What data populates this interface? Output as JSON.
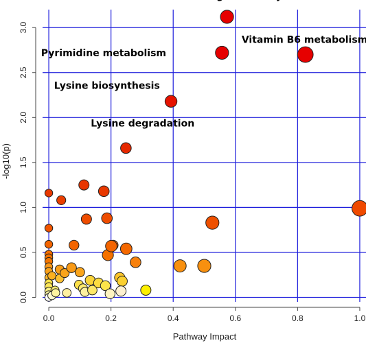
{
  "chart_data": {
    "type": "scatter",
    "title": "",
    "xlabel": "Pathway Impact",
    "ylabel": "-log10(p)",
    "xlim": [
      -0.02,
      1.02
    ],
    "ylim": [
      -0.05,
      3.2
    ],
    "xticks": [
      0.0,
      0.2,
      0.4,
      0.6,
      0.8,
      1.0
    ],
    "xtick_labels": [
      "0.0",
      "0.2",
      "0.4",
      "0.6",
      "0.8",
      "1.0"
    ],
    "yticks": [
      0.0,
      0.5,
      1.0,
      1.5,
      2.0,
      2.5,
      3.0
    ],
    "ytick_labels": [
      "0.0",
      "0.5",
      "1.0",
      "1.5",
      "2.0",
      "2.5",
      "3.0"
    ],
    "grid": true,
    "grid_color": "#1f1fdc",
    "color_scale": "low p → yellow/white, high -log10(p) → red",
    "points": [
      {
        "x": 0.573,
        "y": 3.12,
        "size": 1.1,
        "color": "#e60000"
      },
      {
        "x": 0.557,
        "y": 2.72,
        "size": 1.1,
        "color": "#e60000"
      },
      {
        "x": 0.825,
        "y": 2.7,
        "size": 1.4,
        "color": "#e60000"
      },
      {
        "x": 0.393,
        "y": 2.18,
        "size": 0.95,
        "color": "#e61200"
      },
      {
        "x": 0.248,
        "y": 1.66,
        "size": 0.8,
        "color": "#e62800"
      },
      {
        "x": 1.0,
        "y": 0.99,
        "size": 1.4,
        "color": "#ef4a00"
      },
      {
        "x": 0.113,
        "y": 1.25,
        "size": 0.75,
        "color": "#e83500"
      },
      {
        "x": 0.177,
        "y": 1.18,
        "size": 0.8,
        "color": "#e83800"
      },
      {
        "x": 0.0,
        "y": 1.16,
        "size": 0.45,
        "color": "#e83800"
      },
      {
        "x": 0.04,
        "y": 1.08,
        "size": 0.6,
        "color": "#ea3e00"
      },
      {
        "x": 0.121,
        "y": 0.87,
        "size": 0.75,
        "color": "#ee4c00"
      },
      {
        "x": 0.187,
        "y": 0.88,
        "size": 0.8,
        "color": "#ee4c00"
      },
      {
        "x": 0.526,
        "y": 0.83,
        "size": 1.1,
        "color": "#ee5000"
      },
      {
        "x": 0.0,
        "y": 0.77,
        "size": 0.45,
        "color": "#f05400"
      },
      {
        "x": 0.201,
        "y": 0.57,
        "size": 0.9,
        "color": "#f36400"
      },
      {
        "x": 0.207,
        "y": 0.58,
        "size": 0.7,
        "color": "#f36400"
      },
      {
        "x": 0.081,
        "y": 0.58,
        "size": 0.7,
        "color": "#f36400"
      },
      {
        "x": 0.249,
        "y": 0.54,
        "size": 0.9,
        "color": "#f46800"
      },
      {
        "x": 0.0,
        "y": 0.59,
        "size": 0.45,
        "color": "#f36400"
      },
      {
        "x": 0.0,
        "y": 0.48,
        "size": 0.45,
        "color": "#f46e00"
      },
      {
        "x": 0.0,
        "y": 0.44,
        "size": 0.45,
        "color": "#f57200"
      },
      {
        "x": 0.0,
        "y": 0.4,
        "size": 0.45,
        "color": "#f57600"
      },
      {
        "x": 0.19,
        "y": 0.47,
        "size": 0.85,
        "color": "#f57000"
      },
      {
        "x": 0.279,
        "y": 0.39,
        "size": 0.8,
        "color": "#f7800c"
      },
      {
        "x": 0.422,
        "y": 0.35,
        "size": 1.0,
        "color": "#f8900f"
      },
      {
        "x": 0.5,
        "y": 0.35,
        "size": 1.1,
        "color": "#f8900f"
      },
      {
        "x": 0.073,
        "y": 0.33,
        "size": 0.7,
        "color": "#f99a16"
      },
      {
        "x": 0.035,
        "y": 0.31,
        "size": 0.6,
        "color": "#f99e18"
      },
      {
        "x": 0.0,
        "y": 0.34,
        "size": 0.45,
        "color": "#f99818"
      },
      {
        "x": 0.0,
        "y": 0.29,
        "size": 0.45,
        "color": "#f9a018"
      },
      {
        "x": 0.051,
        "y": 0.27,
        "size": 0.6,
        "color": "#faa41a"
      },
      {
        "x": 0.1,
        "y": 0.28,
        "size": 0.65,
        "color": "#faa41a"
      },
      {
        "x": 0.01,
        "y": 0.24,
        "size": 0.5,
        "color": "#fbb020"
      },
      {
        "x": 0.0,
        "y": 0.22,
        "size": 0.45,
        "color": "#fbb62a"
      },
      {
        "x": 0.035,
        "y": 0.21,
        "size": 0.55,
        "color": "#fbc030"
      },
      {
        "x": 0.228,
        "y": 0.22,
        "size": 0.75,
        "color": "#fbc42a"
      },
      {
        "x": 0.236,
        "y": 0.18,
        "size": 0.75,
        "color": "#fbd030"
      },
      {
        "x": 0.133,
        "y": 0.19,
        "size": 0.7,
        "color": "#fbd438"
      },
      {
        "x": 0.16,
        "y": 0.16,
        "size": 0.7,
        "color": "#fcdc40"
      },
      {
        "x": 0.097,
        "y": 0.14,
        "size": 0.6,
        "color": "#fce04a"
      },
      {
        "x": 0.0,
        "y": 0.16,
        "size": 0.45,
        "color": "#fce44a"
      },
      {
        "x": 0.0,
        "y": 0.12,
        "size": 0.45,
        "color": "#fde858"
      },
      {
        "x": 0.182,
        "y": 0.13,
        "size": 0.7,
        "color": "#fde44a"
      },
      {
        "x": 0.02,
        "y": 0.08,
        "size": 0.5,
        "color": "#fdee70"
      },
      {
        "x": 0.0,
        "y": 0.07,
        "size": 0.45,
        "color": "#fdf080"
      },
      {
        "x": 0.0,
        "y": 0.03,
        "size": 0.45,
        "color": "#fef6a0"
      },
      {
        "x": 0.01,
        "y": 0.02,
        "size": 0.5,
        "color": "#fefad0"
      },
      {
        "x": 0.022,
        "y": 0.05,
        "size": 0.5,
        "color": "#fef4a0"
      },
      {
        "x": 0.058,
        "y": 0.05,
        "size": 0.55,
        "color": "#fef0a0"
      },
      {
        "x": 0.11,
        "y": 0.1,
        "size": 0.6,
        "color": "#fdea70"
      },
      {
        "x": 0.116,
        "y": 0.06,
        "size": 0.6,
        "color": "#fef0a0"
      },
      {
        "x": 0.14,
        "y": 0.08,
        "size": 0.65,
        "color": "#fde868"
      },
      {
        "x": 0.197,
        "y": 0.04,
        "size": 0.7,
        "color": "#fef4c0"
      },
      {
        "x": 0.232,
        "y": 0.07,
        "size": 0.75,
        "color": "#fdf0d0"
      },
      {
        "x": 0.312,
        "y": 0.08,
        "size": 0.75,
        "color": "#fdf000"
      },
      {
        "x": 0.0,
        "y": 0.0,
        "size": 0.45,
        "color": "#ffffff"
      }
    ],
    "annotations": [
      {
        "text": "Arginine biosynthesis",
        "x": 0.5,
        "y": 3.32
      },
      {
        "text": "Vitamin B6 metabolism",
        "x": 0.62,
        "y": 2.83
      },
      {
        "text": "Pyrimidine metabolism",
        "x": -0.025,
        "y": 2.68
      },
      {
        "text": "Lysine biosynthesis",
        "x": 0.017,
        "y": 2.32
      },
      {
        "text": "Lysine degradation",
        "x": 0.135,
        "y": 1.9
      }
    ]
  }
}
